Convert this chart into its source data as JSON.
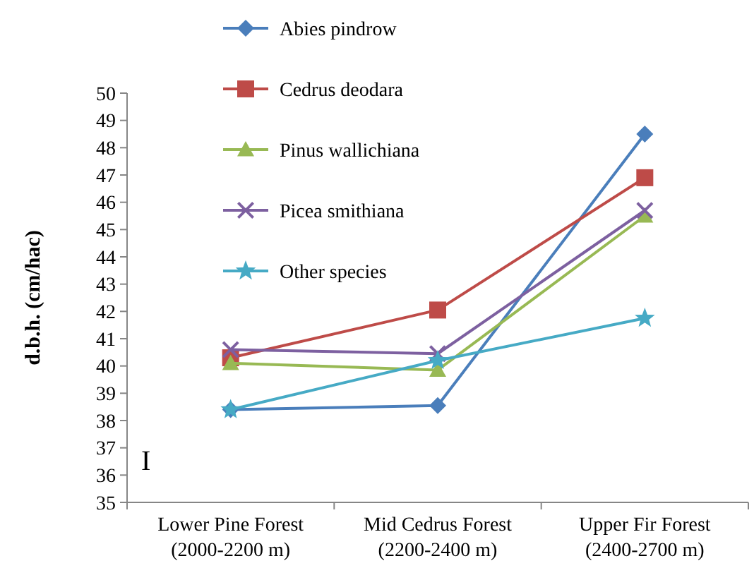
{
  "chart_data": {
    "type": "line",
    "ylabel": "d.b.h. (cm/hac)",
    "categories": [
      "Lower Pine Forest\n(2000-2200 m)",
      "Mid Cedrus Forest\n(2200-2400 m)",
      "Upper Fir Forest\n(2400-2700 m)"
    ],
    "series": [
      {
        "name": "Abies pindrow",
        "color": "#4a7ebb",
        "marker": "diamond",
        "values": [
          38.4,
          38.55,
          48.5
        ]
      },
      {
        "name": "Cedrus deodara",
        "color": "#be4b48",
        "marker": "square",
        "values": [
          40.3,
          42.05,
          46.9
        ]
      },
      {
        "name": "Pinus wallichiana",
        "color": "#98b954",
        "marker": "triangle",
        "values": [
          40.1,
          39.85,
          45.5
        ]
      },
      {
        "name": "Picea smithiana",
        "color": "#7d60a0",
        "marker": "cross",
        "values": [
          40.6,
          40.45,
          45.7
        ]
      },
      {
        "name": "Other species",
        "color": "#46aac5",
        "marker": "star",
        "values": [
          38.4,
          40.2,
          41.75
        ]
      }
    ],
    "ylim": [
      35,
      50
    ],
    "yticks": [
      35,
      36,
      37,
      38,
      39,
      40,
      41,
      42,
      43,
      44,
      45,
      46,
      47,
      48,
      49,
      50
    ],
    "annotations": [
      "I"
    ],
    "legend": "top",
    "grid": false
  }
}
